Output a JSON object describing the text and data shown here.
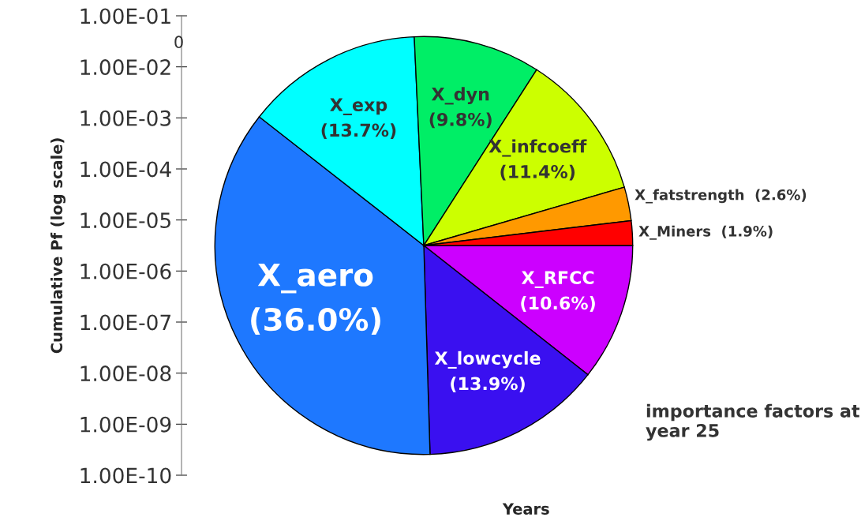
{
  "chart_data": {
    "type": "pie",
    "ylabel": "Cumulative Pf (log scale)",
    "xlabel": "Years",
    "categories": [
      "X_RFCC",
      "X_lowcycle",
      "X_aero",
      "X_exp",
      "X_dyn",
      "X_infcoeff",
      "X_fatstrength",
      "X_Miners"
    ],
    "values": [
      10.6,
      13.9,
      36.0,
      13.7,
      9.8,
      11.4,
      2.6,
      1.9
    ],
    "value_labels": [
      "(10.6%)",
      "(13.9%)",
      "(36.0%)",
      "(13.7%)",
      "(9.8%)",
      "(11.4%)",
      "(2.6%)",
      "(1.9%)"
    ],
    "colors": [
      "#cc00ff",
      "#3a10f0",
      "#1e78ff",
      "#00ffff",
      "#00ee66",
      "#ccff00",
      "#ff9900",
      "#ff0000"
    ],
    "annotations": [
      "0",
      "importance factors at year 25",
      "1.00E-01",
      "1.00E-02",
      "1.00E-03",
      "1.00E-04",
      "1.00E-05",
      "1.00E-06",
      "1.00E-07",
      "1.00E-08",
      "1.00E-09",
      "1.00E-10"
    ]
  }
}
